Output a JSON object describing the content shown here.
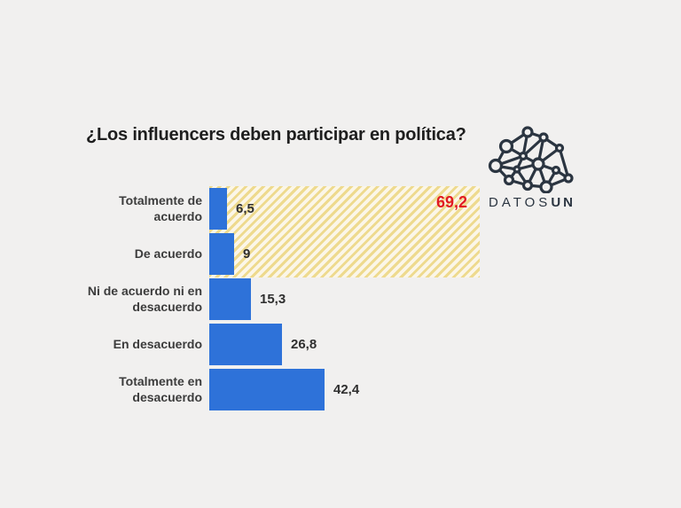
{
  "page": {
    "background": "#f1f0ef"
  },
  "title": "¿Los influencers deben participar en política?",
  "logo": {
    "brand_regular": "DATOS",
    "brand_bold": "UN",
    "icon": "network-graph-icon",
    "color": "#2b3541"
  },
  "chart_data": {
    "type": "bar",
    "orientation": "horizontal",
    "title": "¿Los influencers deben participar en política?",
    "categories": [
      "Totalmente de acuerdo",
      "De acuerdo",
      "Ni de acuerdo ni en desacuerdo",
      "En desacuerdo",
      "Totalmente en desacuerdo"
    ],
    "values": [
      6.5,
      9,
      15.3,
      26.8,
      42.4
    ],
    "value_labels": [
      "6,5",
      "9",
      "15,3",
      "26,8",
      "42,4"
    ],
    "unit": "percent",
    "xlim": [
      0,
      100
    ],
    "grid": false,
    "axes_visible": false,
    "bar_color": "#2e72d9",
    "highlight": {
      "label": "69,2",
      "value": 69.2,
      "covers": [
        "En desacuerdo",
        "Totalmente en desacuerdo"
      ],
      "label_color": "#e11b22",
      "fill_style": "diagonal-hatch",
      "fill_colors": [
        "#eeda8e",
        "#fbf6e8"
      ]
    }
  }
}
